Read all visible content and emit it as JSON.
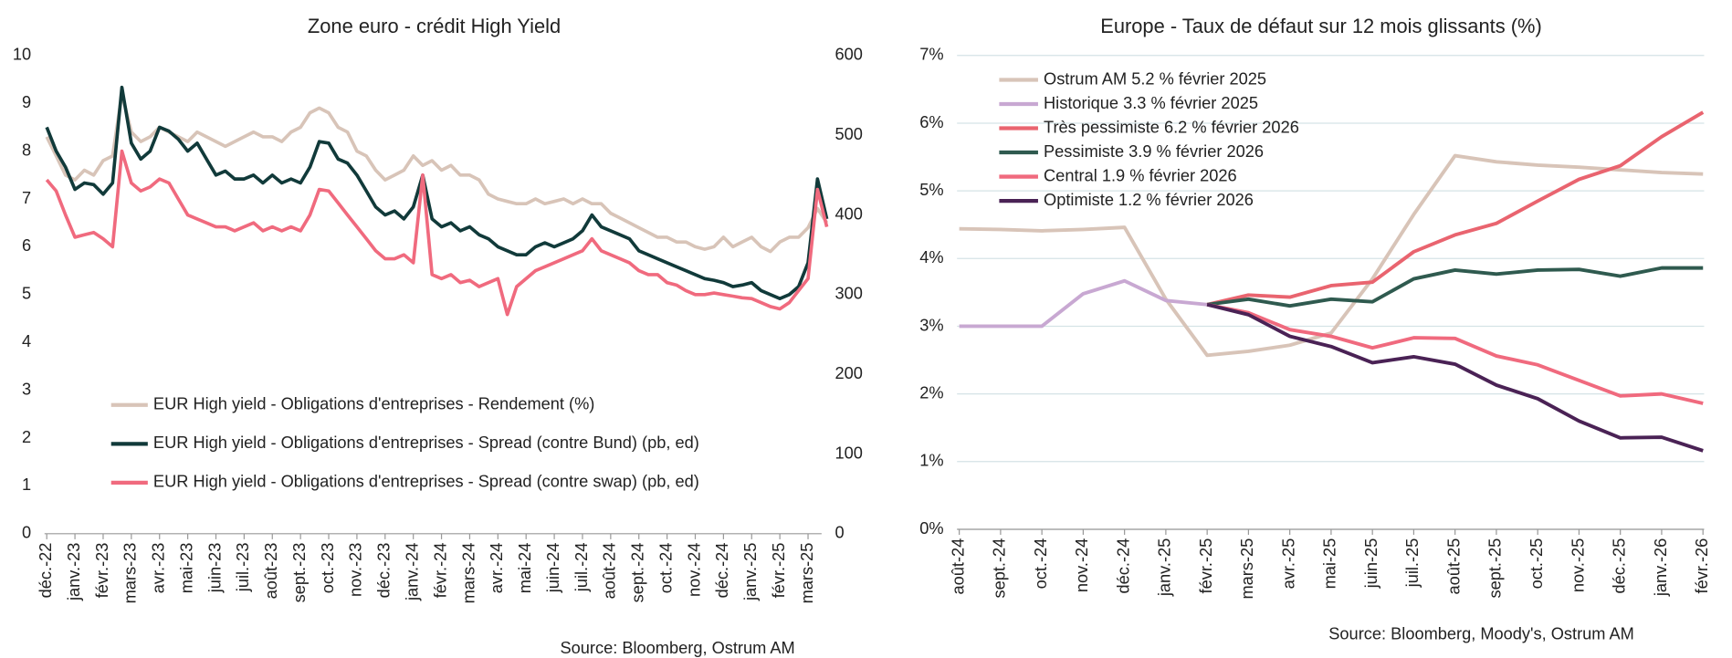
{
  "chart_data": [
    {
      "type": "line",
      "title": "Zone euro - crédit High Yield",
      "source": "Source: Bloomberg, Ostrum AM",
      "categories": [
        "déc.-22",
        null,
        null,
        "janv.-23",
        null,
        null,
        "févr.-23",
        null,
        null,
        "mars-23",
        null,
        null,
        "avr.-23",
        null,
        null,
        "mai-23",
        null,
        null,
        "juin-23",
        null,
        null,
        "juil.-23",
        null,
        null,
        "août-23",
        null,
        null,
        "sept.-23",
        null,
        null,
        "oct.-23",
        null,
        null,
        "nov.-23",
        null,
        null,
        "déc.-23",
        null,
        null,
        "janv.-24",
        null,
        null,
        "févr.-24",
        null,
        null,
        "mars-24",
        null,
        null,
        "avr.-24",
        null,
        null,
        "mai-24",
        null,
        null,
        "juin-24",
        null,
        null,
        "juil.-24",
        null,
        null,
        "août-24",
        null,
        null,
        "sept.-24",
        null,
        null,
        "oct.-24",
        null,
        null,
        "nov.-24",
        null,
        null,
        "déc.-24",
        null,
        null,
        "janv.-25",
        null,
        null,
        "févr.-25",
        null,
        null,
        "mars-25",
        null,
        null
      ],
      "ylim": [
        0,
        10
      ],
      "yticks": [
        0,
        1,
        2,
        3,
        4,
        5,
        6,
        7,
        8,
        9,
        10
      ],
      "y2lim": [
        0,
        600
      ],
      "y2ticks": [
        0,
        100,
        200,
        300,
        400,
        500,
        600
      ],
      "series": [
        {
          "name": "EUR High yield - Obligations d'entreprises - Rendement  (%)",
          "color": "#d8c4b8",
          "values": [
            8.3,
            7.9,
            7.5,
            7.4,
            7.6,
            7.5,
            7.8,
            7.9,
            9.2,
            8.4,
            8.2,
            8.3,
            8.5,
            8.4,
            8.3,
            8.2,
            8.4,
            8.3,
            8.2,
            8.1,
            8.2,
            8.3,
            8.4,
            8.3,
            8.3,
            8.2,
            8.4,
            8.5,
            8.8,
            8.9,
            8.8,
            8.5,
            8.4,
            8.0,
            7.9,
            7.6,
            7.4,
            7.5,
            7.6,
            7.9,
            7.7,
            7.8,
            7.6,
            7.7,
            7.5,
            7.5,
            7.4,
            7.1,
            7.0,
            6.95,
            6.9,
            6.9,
            7.0,
            6.9,
            6.95,
            7.0,
            6.9,
            7.0,
            6.9,
            6.9,
            6.7,
            6.6,
            6.5,
            6.4,
            6.3,
            6.2,
            6.2,
            6.1,
            6.1,
            6.0,
            5.95,
            6.0,
            6.2,
            6.0,
            6.1,
            6.2,
            6.0,
            5.9,
            6.1,
            6.2,
            6.2,
            6.4,
            6.8,
            6.5
          ]
        },
        {
          "name": "EUR High yield - Obligations d'entreprises - Spread (contre Bund)  (pb, ed)",
          "color": "#113a3a",
          "axis": "y2",
          "values": [
            510,
            480,
            460,
            432,
            440,
            438,
            426,
            440,
            560,
            490,
            470,
            480,
            510,
            505,
            495,
            480,
            490,
            470,
            450,
            455,
            445,
            445,
            450,
            440,
            450,
            440,
            445,
            440,
            460,
            492,
            490,
            470,
            465,
            450,
            430,
            410,
            400,
            405,
            395,
            410,
            450,
            395,
            385,
            390,
            380,
            385,
            375,
            370,
            360,
            355,
            350,
            350,
            360,
            365,
            360,
            365,
            370,
            380,
            400,
            385,
            380,
            375,
            370,
            355,
            350,
            345,
            340,
            335,
            330,
            325,
            320,
            318,
            315,
            310,
            312,
            315,
            305,
            300,
            295,
            300,
            310,
            340,
            445,
            395
          ]
        },
        {
          "name": "EUR High yield - Obligations d'entreprises - Spread (contre swap)  (pb, ed)",
          "color": "#f06a7e",
          "axis": "y2",
          "values": [
            444,
            430,
            400,
            372,
            375,
            378,
            370,
            360,
            480,
            440,
            430,
            435,
            445,
            440,
            420,
            400,
            395,
            390,
            385,
            385,
            380,
            385,
            390,
            380,
            385,
            380,
            385,
            380,
            400,
            432,
            430,
            415,
            400,
            385,
            370,
            355,
            345,
            345,
            350,
            340,
            450,
            325,
            320,
            325,
            315,
            318,
            310,
            315,
            320,
            275,
            310,
            320,
            330,
            335,
            340,
            345,
            350,
            355,
            370,
            355,
            350,
            345,
            340,
            330,
            325,
            325,
            315,
            312,
            305,
            300,
            300,
            302,
            300,
            298,
            296,
            295,
            290,
            285,
            282,
            290,
            305,
            320,
            432,
            385
          ]
        }
      ]
    },
    {
      "type": "line",
      "title": "Europe - Taux de défaut sur 12 mois glissants (%)",
      "source": "Source: Bloomberg, Moody's, Ostrum AM",
      "categories": [
        "août-24",
        "sept.-24",
        "oct.-24",
        "nov.-24",
        "déc.-24",
        "janv.-25",
        "févr.-25",
        "mars-25",
        "avr.-25",
        "mai-25",
        "juin-25",
        "juil.-25",
        "août-25",
        "sept.-25",
        "oct.-25",
        "nov.-25",
        "déc.-25",
        "janv.-26",
        "févr.-26"
      ],
      "ylim": [
        0,
        7
      ],
      "grid": true,
      "yticks": [
        {
          "value": 0,
          "label": "0%"
        },
        {
          "value": 1,
          "label": "1%"
        },
        {
          "value": 2,
          "label": "2%"
        },
        {
          "value": 3,
          "label": "3%"
        },
        {
          "value": 4,
          "label": "4%"
        },
        {
          "value": 5,
          "label": "5%"
        },
        {
          "value": 6,
          "label": "6%"
        },
        {
          "value": 7,
          "label": "7%"
        }
      ],
      "series": [
        {
          "name": "Ostrum AM 5.2 % février 2025",
          "color": "#d8c4b8",
          "values": [
            4.44,
            4.43,
            4.41,
            4.43,
            4.46,
            3.4,
            2.57,
            2.63,
            2.72,
            2.9,
            3.7,
            4.65,
            5.52,
            5.43,
            5.38,
            5.35,
            5.31,
            5.27,
            5.25
          ]
        },
        {
          "name": "Historique 3.3 % février 2025",
          "color": "#c8a8d2",
          "values": [
            3.0,
            3.0,
            3.0,
            3.48,
            3.67,
            3.38,
            3.32,
            null,
            null,
            null,
            null,
            null,
            null,
            null,
            null,
            null,
            null,
            null,
            null
          ]
        },
        {
          "name": "Très pessimiste 6.2 % février 2026",
          "color": "#e9646f",
          "values": [
            null,
            null,
            null,
            null,
            null,
            null,
            3.32,
            3.46,
            3.43,
            3.6,
            3.65,
            4.1,
            4.35,
            4.52,
            4.85,
            5.17,
            5.37,
            5.8,
            6.16
          ]
        },
        {
          "name": "Pessimiste 3.9 % février 2026",
          "color": "#2f5a4f",
          "values": [
            null,
            null,
            null,
            null,
            null,
            null,
            3.32,
            3.4,
            3.3,
            3.4,
            3.36,
            3.7,
            3.83,
            3.77,
            3.83,
            3.84,
            3.74,
            3.86,
            3.86
          ]
        },
        {
          "name": "Central 1.9 % février 2026",
          "color": "#f06a7e",
          "values": [
            null,
            null,
            null,
            null,
            null,
            null,
            3.32,
            3.2,
            2.95,
            2.85,
            2.68,
            2.83,
            2.82,
            2.56,
            2.43,
            2.2,
            1.97,
            2.0,
            1.86
          ]
        },
        {
          "name": "Optimiste 1.2 % février 2026",
          "color": "#4a2255",
          "values": [
            null,
            null,
            null,
            null,
            null,
            null,
            3.32,
            3.17,
            2.85,
            2.7,
            2.46,
            2.55,
            2.44,
            2.13,
            1.93,
            1.6,
            1.35,
            1.36,
            1.16
          ]
        }
      ]
    }
  ]
}
